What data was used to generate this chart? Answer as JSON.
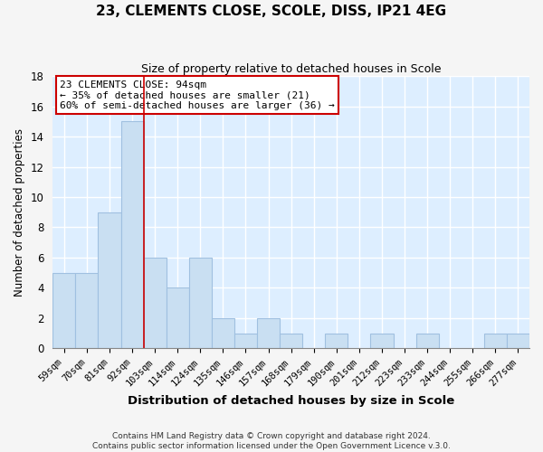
{
  "title": "23, CLEMENTS CLOSE, SCOLE, DISS, IP21 4EG",
  "subtitle": "Size of property relative to detached houses in Scole",
  "xlabel": "Distribution of detached houses by size in Scole",
  "ylabel": "Number of detached properties",
  "bar_labels": [
    "59sqm",
    "70sqm",
    "81sqm",
    "92sqm",
    "103sqm",
    "114sqm",
    "124sqm",
    "135sqm",
    "146sqm",
    "157sqm",
    "168sqm",
    "179sqm",
    "190sqm",
    "201sqm",
    "212sqm",
    "223sqm",
    "233sqm",
    "244sqm",
    "255sqm",
    "266sqm",
    "277sqm"
  ],
  "bar_heights": [
    5,
    5,
    9,
    15,
    6,
    4,
    6,
    2,
    1,
    2,
    1,
    0,
    1,
    0,
    1,
    0,
    1,
    0,
    0,
    1,
    1
  ],
  "bar_color": "#c9dff2",
  "bar_edge_color": "#a0c0e0",
  "ylim": [
    0,
    18
  ],
  "yticks": [
    0,
    2,
    4,
    6,
    8,
    10,
    12,
    14,
    16,
    18
  ],
  "vline_x": 3.5,
  "vline_color": "#cc0000",
  "annotation_line1": "23 CLEMENTS CLOSE: 94sqm",
  "annotation_line2": "← 35% of detached houses are smaller (21)",
  "annotation_line3": "60% of semi-detached houses are larger (36) →",
  "annotation_box_edgecolor": "#cc0000",
  "annotation_box_facecolor": "#ffffff",
  "footer_text": "Contains HM Land Registry data © Crown copyright and database right 2024.\nContains public sector information licensed under the Open Government Licence v.3.0.",
  "grid_color": "#ffffff",
  "plot_bg_color": "#ddeeff",
  "fig_bg_color": "#f5f5f5"
}
